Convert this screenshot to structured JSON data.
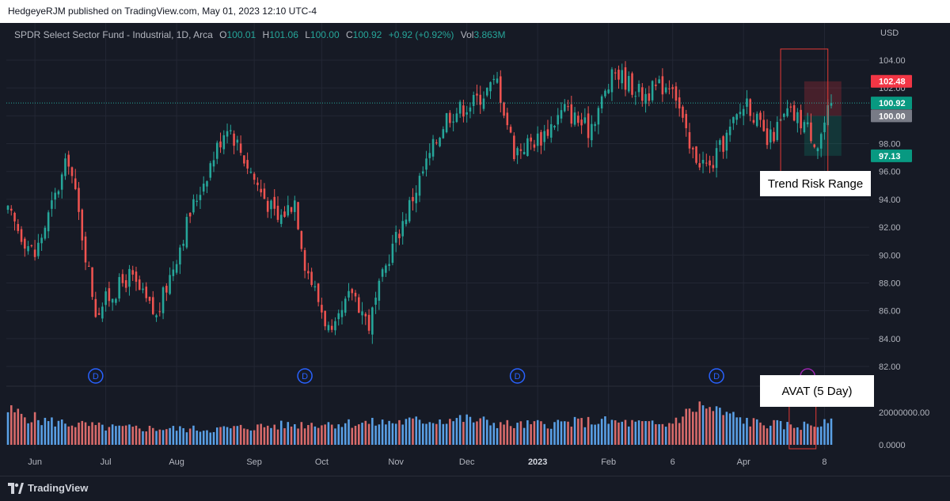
{
  "publish_header": "HedgeyeRJM published on TradingView.com, May 01, 2023 12:10 UTC-4",
  "legend": {
    "symbol": "SPDR Select Sector Fund - Industrial, 1D, Arca",
    "o_label": "O",
    "o_value": "100.01",
    "h_label": "H",
    "h_value": "101.06",
    "l_label": "L",
    "l_value": "100.00",
    "c_label": "C",
    "c_value": "100.92",
    "change": "+0.92 (+0.92%)",
    "vol_label": "Vol",
    "vol_value": "3.863M"
  },
  "currency": "USD",
  "annotations": {
    "trend_risk_range": "Trend Risk Range",
    "avat": "AVAT (5 Day)"
  },
  "footer": {
    "brand": "TradingView",
    "logo": "tradingview-logo"
  },
  "colors": {
    "up": "#26a69a",
    "down": "#ef5350",
    "background": "#161a25",
    "grid": "#232734",
    "volume_up": "#5aa0e6",
    "volume_down": "#d96b6b",
    "box": "#e53935"
  },
  "dividend_marker": "D",
  "chart_data": {
    "type": "candlestick",
    "title": "SPDR Select Sector Fund - Industrial, 1D, Arca",
    "price_axis": {
      "ticks": [
        82,
        84,
        86,
        88,
        90,
        92,
        94,
        96,
        98,
        100,
        102,
        104
      ],
      "tick_labels": [
        "82.00",
        "84.00",
        "86.00",
        "88.00",
        "90.00",
        "92.00",
        "94.00",
        "96.00",
        "98.00",
        "100.00",
        "102.00",
        "104.00"
      ],
      "range": [
        81.2,
        106.5
      ],
      "current_price": 100.92,
      "current_price_label": "100.92",
      "level_markers": [
        {
          "label": "102.48",
          "value": 102.48,
          "color": "#f23645"
        },
        {
          "label": "100.92",
          "value": 100.92,
          "color": "#089981"
        },
        {
          "label": "100.00",
          "value": 100.0,
          "color": "#787b86"
        },
        {
          "label": "97.13",
          "value": 97.13,
          "color": "#089981"
        }
      ]
    },
    "volume_axis": {
      "ticks": [
        0,
        20000000
      ],
      "tick_labels": [
        "0.0000",
        "20000000.00"
      ],
      "range": [
        0,
        38000000
      ]
    },
    "time_axis": {
      "labels": [
        {
          "label": "Jun",
          "index": 8
        },
        {
          "label": "Jul",
          "index": 29
        },
        {
          "label": "Aug",
          "index": 50
        },
        {
          "label": "Sep",
          "index": 73
        },
        {
          "label": "Oct",
          "index": 93
        },
        {
          "label": "Nov",
          "index": 115
        },
        {
          "label": "Dec",
          "index": 136
        },
        {
          "label": "2023",
          "index": 157,
          "bold": true
        },
        {
          "label": "Feb",
          "index": 178
        },
        {
          "label": "6",
          "index": 197
        },
        {
          "label": "Apr",
          "index": 218
        },
        {
          "label": "8",
          "index": 242
        }
      ]
    },
    "dividend_indices": [
      26,
      88,
      151,
      210,
      237
    ],
    "risk_range": {
      "upper": 102.48,
      "entry": 100.0,
      "lower": 97.13,
      "start_index": 236,
      "end_index": 247
    },
    "trend_box": {
      "high": 104.8,
      "low": 95.3,
      "start_index": 229,
      "end_index": 243
    },
    "avat_box": {
      "start_index": 232,
      "end_index": 239,
      "top": 24000000
    },
    "series": [
      {
        "name": "price",
        "anchors": [
          {
            "i": 0,
            "c": 93.0
          },
          {
            "i": 8,
            "c": 90.0
          },
          {
            "i": 18,
            "c": 97.0
          },
          {
            "i": 26,
            "c": 86.0
          },
          {
            "i": 36,
            "c": 88.5
          },
          {
            "i": 44,
            "c": 85.5
          },
          {
            "i": 54,
            "c": 93.0
          },
          {
            "i": 65,
            "c": 99.5
          },
          {
            "i": 74,
            "c": 95.0
          },
          {
            "i": 80,
            "c": 92.5
          },
          {
            "i": 85,
            "c": 94.0
          },
          {
            "i": 88,
            "c": 89.5
          },
          {
            "i": 96,
            "c": 84.0
          },
          {
            "i": 102,
            "c": 87.5
          },
          {
            "i": 107,
            "c": 85.0
          },
          {
            "i": 113,
            "c": 90.0
          },
          {
            "i": 123,
            "c": 96.0
          },
          {
            "i": 130,
            "c": 100.0
          },
          {
            "i": 138,
            "c": 101.0
          },
          {
            "i": 145,
            "c": 102.5
          },
          {
            "i": 150,
            "c": 97.5
          },
          {
            "i": 158,
            "c": 98.5
          },
          {
            "i": 165,
            "c": 100.5
          },
          {
            "i": 172,
            "c": 99.0
          },
          {
            "i": 180,
            "c": 103.2
          },
          {
            "i": 188,
            "c": 101.5
          },
          {
            "i": 197,
            "c": 102.5
          },
          {
            "i": 202,
            "c": 97.5
          },
          {
            "i": 208,
            "c": 96.2
          },
          {
            "i": 213,
            "c": 98.5
          },
          {
            "i": 219,
            "c": 101.2
          },
          {
            "i": 225,
            "c": 98.0
          },
          {
            "i": 231,
            "c": 100.2
          },
          {
            "i": 236,
            "c": 99.5
          },
          {
            "i": 240,
            "c": 98.0
          },
          {
            "i": 244,
            "c": 100.92
          }
        ]
      },
      {
        "name": "volume",
        "anchors": [
          {
            "i": 0,
            "v": 21000000
          },
          {
            "i": 10,
            "v": 15000000
          },
          {
            "i": 30,
            "v": 10500000
          },
          {
            "i": 60,
            "v": 9500000
          },
          {
            "i": 90,
            "v": 13000000
          },
          {
            "i": 110,
            "v": 13500000
          },
          {
            "i": 135,
            "v": 16000000
          },
          {
            "i": 150,
            "v": 12000000
          },
          {
            "i": 175,
            "v": 14500000
          },
          {
            "i": 195,
            "v": 12000000
          },
          {
            "i": 205,
            "v": 24000000
          },
          {
            "i": 220,
            "v": 14000000
          },
          {
            "i": 232,
            "v": 11500000
          },
          {
            "i": 244,
            "v": 13000000
          }
        ]
      }
    ]
  }
}
